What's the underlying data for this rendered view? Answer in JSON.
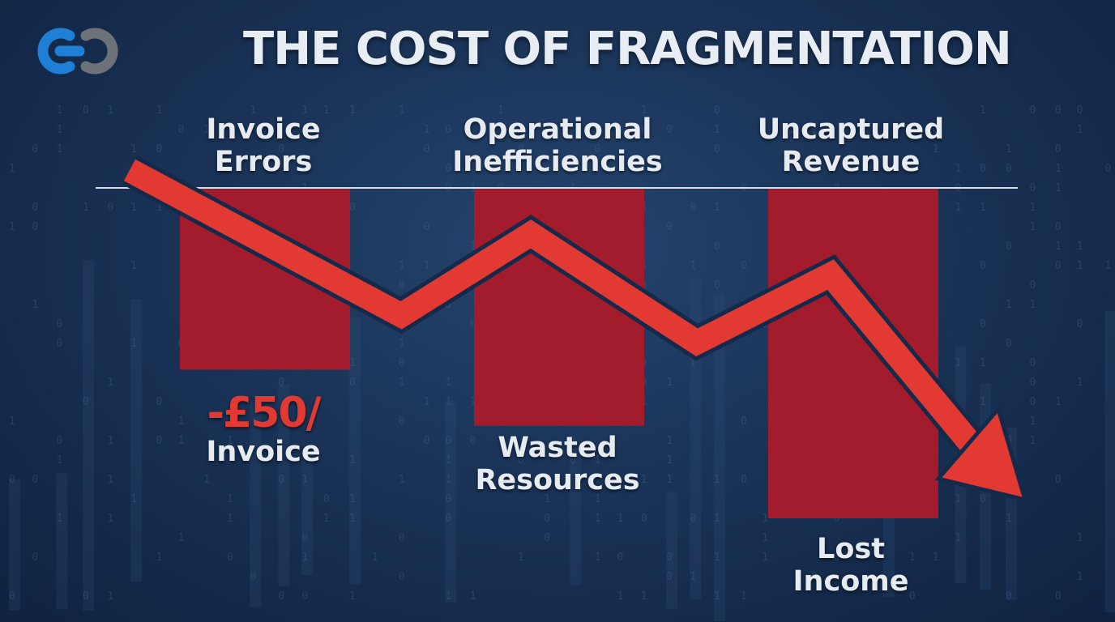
{
  "title": "THE COST OF FRAGMENTATION",
  "logo": {
    "icon": "linked-rings-logo-icon",
    "colors": [
      "#1f7fd6",
      "#6d7278"
    ]
  },
  "colors": {
    "bar": "#a81f2a",
    "arrow": "#e23a33",
    "arrow_outline": "#152a4a",
    "baseline": "#d7dde5",
    "text": "#e6ebf1"
  },
  "chart_data": {
    "type": "bar",
    "title": "THE COST OF FRAGMENTATION",
    "categories": [
      {
        "top": [
          "Invoice",
          "Errors"
        ],
        "value": -0.55,
        "bottom_value": "-£50/",
        "bottom": [
          "Invoice"
        ]
      },
      {
        "top": [
          "Operational",
          "Inefficiencies"
        ],
        "value": -0.72,
        "bottom_value": "",
        "bottom": [
          "Wasted",
          "Resources"
        ]
      },
      {
        "top": [
          "Uncaptured",
          "Revenue"
        ],
        "value": -1.0,
        "bottom_value": "",
        "bottom": [
          "Lost",
          "Income"
        ]
      }
    ],
    "trend": {
      "type": "line",
      "direction": "down",
      "values": [
        0.0,
        -0.5,
        -0.2,
        -0.6,
        -0.35,
        -1.0
      ]
    },
    "ylim": [
      -1.0,
      0
    ],
    "grid": false,
    "legend": "none"
  }
}
